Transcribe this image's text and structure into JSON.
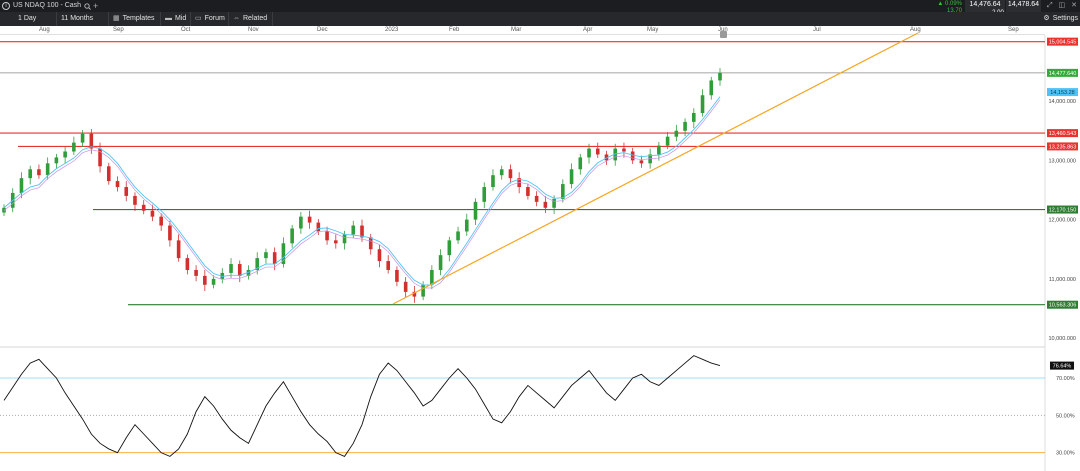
{
  "title_bar": {
    "instrument_name": "US NDAQ 100 - Cash",
    "instrument_icon": "info-icon",
    "search_icon": "search-icon",
    "add_tab_icon": "plus-icon",
    "change_percent": "▲ 0.09%",
    "change_points": "13.70",
    "bid": "14,476.64",
    "ask": "14,478.64",
    "spread": "2.00"
  },
  "toolbar": {
    "timeframe": "1 Day",
    "range": "11 Months",
    "templates_label": "Templates",
    "mid_label": "Mid",
    "forum_label": "Forum",
    "related_label": "Related",
    "settings_label": "Settings"
  },
  "month_axis": [
    "Aug",
    "Sep",
    "Oct",
    "Nov",
    "Dec",
    "2023",
    "Feb",
    "Mar",
    "Apr",
    "May",
    "Jun",
    "Jul",
    "Aug",
    "Sep"
  ],
  "price_axis": {
    "ticks": [
      "15,000.000",
      "14,000.000",
      "13,000.000",
      "12,000.000",
      "11,000.000",
      "10,000.000"
    ],
    "labels": [
      {
        "text": "15,004.545",
        "color": "#e8332f"
      },
      {
        "text": "14,477.640",
        "color": "#36a93c"
      },
      {
        "text": "14,153.28",
        "color": "#4fc3f7"
      },
      {
        "text": "13,460.543",
        "color": "#e8332f"
      },
      {
        "text": "13,235.863",
        "color": "#e8332f"
      },
      {
        "text": "12,170.150",
        "color": "#2e7d32"
      },
      {
        "text": "10,563.306",
        "color": "#2e7d32"
      }
    ]
  },
  "rsi_axis": {
    "current_value": "76.64%",
    "ticks": [
      "70.00%",
      "50.00%",
      "30.00%"
    ]
  },
  "chart_data": {
    "type": "candlestick",
    "title": "",
    "ylabel": "",
    "xlabel": "",
    "ylim": [
      9900,
      15100
    ],
    "horizontal_levels": [
      {
        "value": 15004.545,
        "color": "#e8332f"
      },
      {
        "value": 14477.64,
        "color": "#888888"
      },
      {
        "value": 13460.543,
        "color": "#e8332f"
      },
      {
        "value": 13235.863,
        "color": "#e8332f"
      },
      {
        "value": 12170.15,
        "color": "#2e7d32"
      },
      {
        "value": 10563.306,
        "color": "#2e7d32"
      }
    ],
    "trendline": {
      "from": {
        "month": "Dec",
        "value": 10575
      },
      "to": {
        "month": "Aug",
        "value": 15160
      },
      "color": "#f5a623"
    },
    "close": [
      12200,
      12450,
      12700,
      12850,
      12750,
      12950,
      13050,
      13150,
      13300,
      13450,
      13200,
      12900,
      12650,
      12550,
      12400,
      12250,
      12150,
      12050,
      11900,
      11650,
      11350,
      11150,
      11050,
      10900,
      11000,
      11100,
      11250,
      11050,
      11150,
      11350,
      11450,
      11250,
      11600,
      11850,
      12050,
      11950,
      11800,
      11650,
      11600,
      11750,
      11900,
      11700,
      11500,
      11300,
      11150,
      10950,
      10780,
      10700,
      10900,
      11150,
      11400,
      11650,
      11800,
      12000,
      12300,
      12550,
      12750,
      12850,
      12700,
      12550,
      12400,
      12300,
      12200,
      12350,
      12600,
      12850,
      13050,
      13200,
      13100,
      13000,
      13200,
      13150,
      13000,
      12950,
      13100,
      13250,
      13400,
      13500,
      13650,
      13800,
      14100,
      14350,
      14478
    ]
  },
  "rsi_data": {
    "ylim": [
      25,
      85
    ],
    "levels": [
      70,
      50,
      30
    ],
    "values": [
      58,
      65,
      72,
      78,
      80,
      75,
      70,
      62,
      55,
      48,
      40,
      35,
      32,
      30,
      38,
      45,
      40,
      35,
      30,
      28,
      32,
      40,
      52,
      60,
      55,
      48,
      42,
      38,
      35,
      45,
      55,
      62,
      68,
      60,
      52,
      45,
      40,
      36,
      30,
      28,
      35,
      45,
      60,
      72,
      78,
      74,
      68,
      62,
      55,
      58,
      64,
      70,
      75,
      70,
      64,
      56,
      48,
      46,
      52,
      60,
      66,
      62,
      58,
      54,
      60,
      66,
      70,
      74,
      68,
      62,
      58,
      64,
      70,
      72,
      68,
      66,
      70,
      74,
      78,
      82,
      80,
      78,
      76.64
    ]
  }
}
